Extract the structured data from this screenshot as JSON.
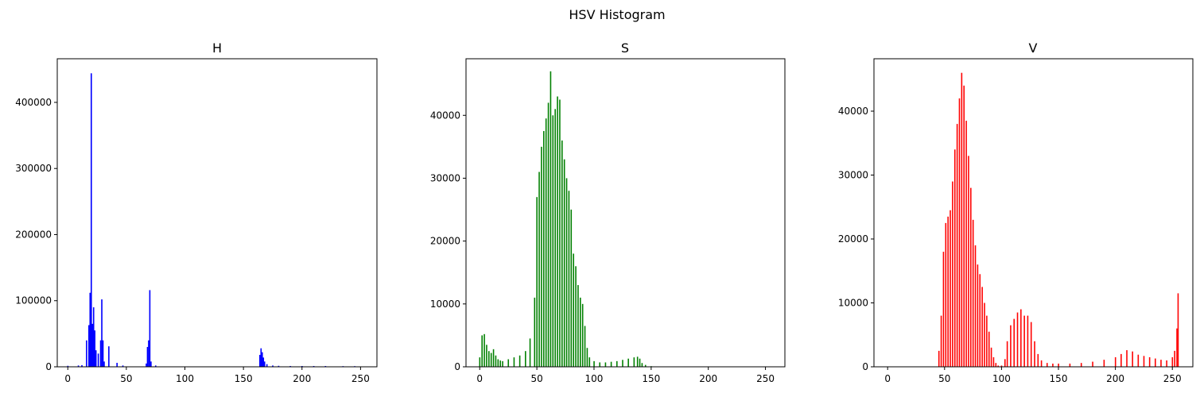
{
  "figure": {
    "suptitle": "HSV Histogram"
  },
  "chart_data": [
    {
      "type": "bar",
      "title": "H",
      "color": "#0000ff",
      "xlim": [
        -9,
        264
      ],
      "ylim": [
        0,
        466000
      ],
      "xticks": [
        0,
        50,
        100,
        150,
        200,
        250
      ],
      "yticks": [
        0,
        100000,
        200000,
        300000,
        400000
      ],
      "x": [
        0,
        9,
        12,
        16,
        18,
        19,
        20,
        21,
        22,
        23,
        24,
        26,
        28,
        29,
        30,
        31,
        35,
        42,
        47,
        67,
        68,
        69,
        70,
        71,
        75,
        164,
        165,
        166,
        167,
        168,
        170,
        175,
        180,
        190,
        200,
        210,
        220,
        235,
        245
      ],
      "values": [
        1500,
        2000,
        2500,
        40000,
        63000,
        112000,
        444000,
        65000,
        90000,
        55000,
        25000,
        20000,
        40000,
        102000,
        40000,
        8000,
        31000,
        6000,
        2000,
        5000,
        30000,
        40000,
        116000,
        8000,
        2000,
        18000,
        28000,
        22000,
        14000,
        8000,
        4000,
        2000,
        1500,
        1200,
        1200,
        1200,
        1200,
        1000,
        1000
      ]
    },
    {
      "type": "bar",
      "title": "S",
      "color": "#008000",
      "xlim": [
        -12,
        267
      ],
      "ylim": [
        0,
        49000
      ],
      "xticks": [
        0,
        50,
        100,
        150,
        200,
        250
      ],
      "yticks": [
        0,
        10000,
        20000,
        30000,
        40000
      ],
      "x": [
        0,
        2,
        4,
        6,
        8,
        10,
        12,
        14,
        16,
        18,
        20,
        25,
        30,
        35,
        40,
        44,
        48,
        50,
        52,
        54,
        56,
        58,
        60,
        62,
        64,
        66,
        68,
        70,
        72,
        74,
        76,
        78,
        80,
        82,
        84,
        86,
        88,
        90,
        92,
        94,
        96,
        100,
        105,
        110,
        115,
        120,
        125,
        130,
        135,
        138,
        140,
        142,
        145,
        150,
        160,
        200,
        255
      ],
      "values": [
        1500,
        5000,
        5200,
        3500,
        2500,
        2200,
        2800,
        1800,
        1200,
        1000,
        900,
        1200,
        1500,
        1800,
        2500,
        4500,
        11000,
        27000,
        31000,
        35000,
        37500,
        39500,
        42000,
        47000,
        40000,
        41000,
        43000,
        42500,
        36000,
        33000,
        30000,
        28000,
        25000,
        18000,
        16000,
        13000,
        11000,
        10000,
        6500,
        3000,
        1500,
        900,
        700,
        700,
        800,
        900,
        1100,
        1300,
        1500,
        1600,
        1300,
        600,
        300,
        100,
        0,
        0,
        0
      ]
    },
    {
      "type": "bar",
      "title": "V",
      "color": "#ff0000",
      "xlim": [
        -12,
        268
      ],
      "ylim": [
        0,
        48200
      ],
      "xticks": [
        0,
        50,
        100,
        150,
        200,
        250
      ],
      "yticks": [
        0,
        10000,
        20000,
        30000,
        40000
      ],
      "x": [
        0,
        40,
        45,
        47,
        49,
        51,
        53,
        55,
        57,
        59,
        61,
        63,
        65,
        67,
        69,
        71,
        73,
        75,
        77,
        79,
        81,
        83,
        85,
        87,
        89,
        91,
        93,
        95,
        97,
        100,
        103,
        105,
        108,
        111,
        114,
        117,
        120,
        123,
        126,
        129,
        132,
        135,
        140,
        145,
        150,
        160,
        170,
        180,
        190,
        200,
        205,
        210,
        215,
        220,
        225,
        230,
        235,
        240,
        245,
        250,
        252,
        254,
        255
      ],
      "values": [
        0,
        0,
        2500,
        8000,
        18000,
        22500,
        23500,
        24500,
        29000,
        34000,
        38000,
        42000,
        46000,
        44000,
        38500,
        33000,
        28000,
        23000,
        19000,
        16000,
        14500,
        12500,
        10000,
        8000,
        5500,
        3000,
        1500,
        600,
        200,
        200,
        1200,
        4000,
        6500,
        7500,
        8500,
        9000,
        8000,
        8000,
        7000,
        4000,
        2000,
        1000,
        600,
        500,
        500,
        500,
        600,
        800,
        1100,
        1500,
        2000,
        2600,
        2400,
        1900,
        1700,
        1500,
        1300,
        1100,
        1000,
        1500,
        2500,
        6000,
        11500
      ]
    }
  ]
}
